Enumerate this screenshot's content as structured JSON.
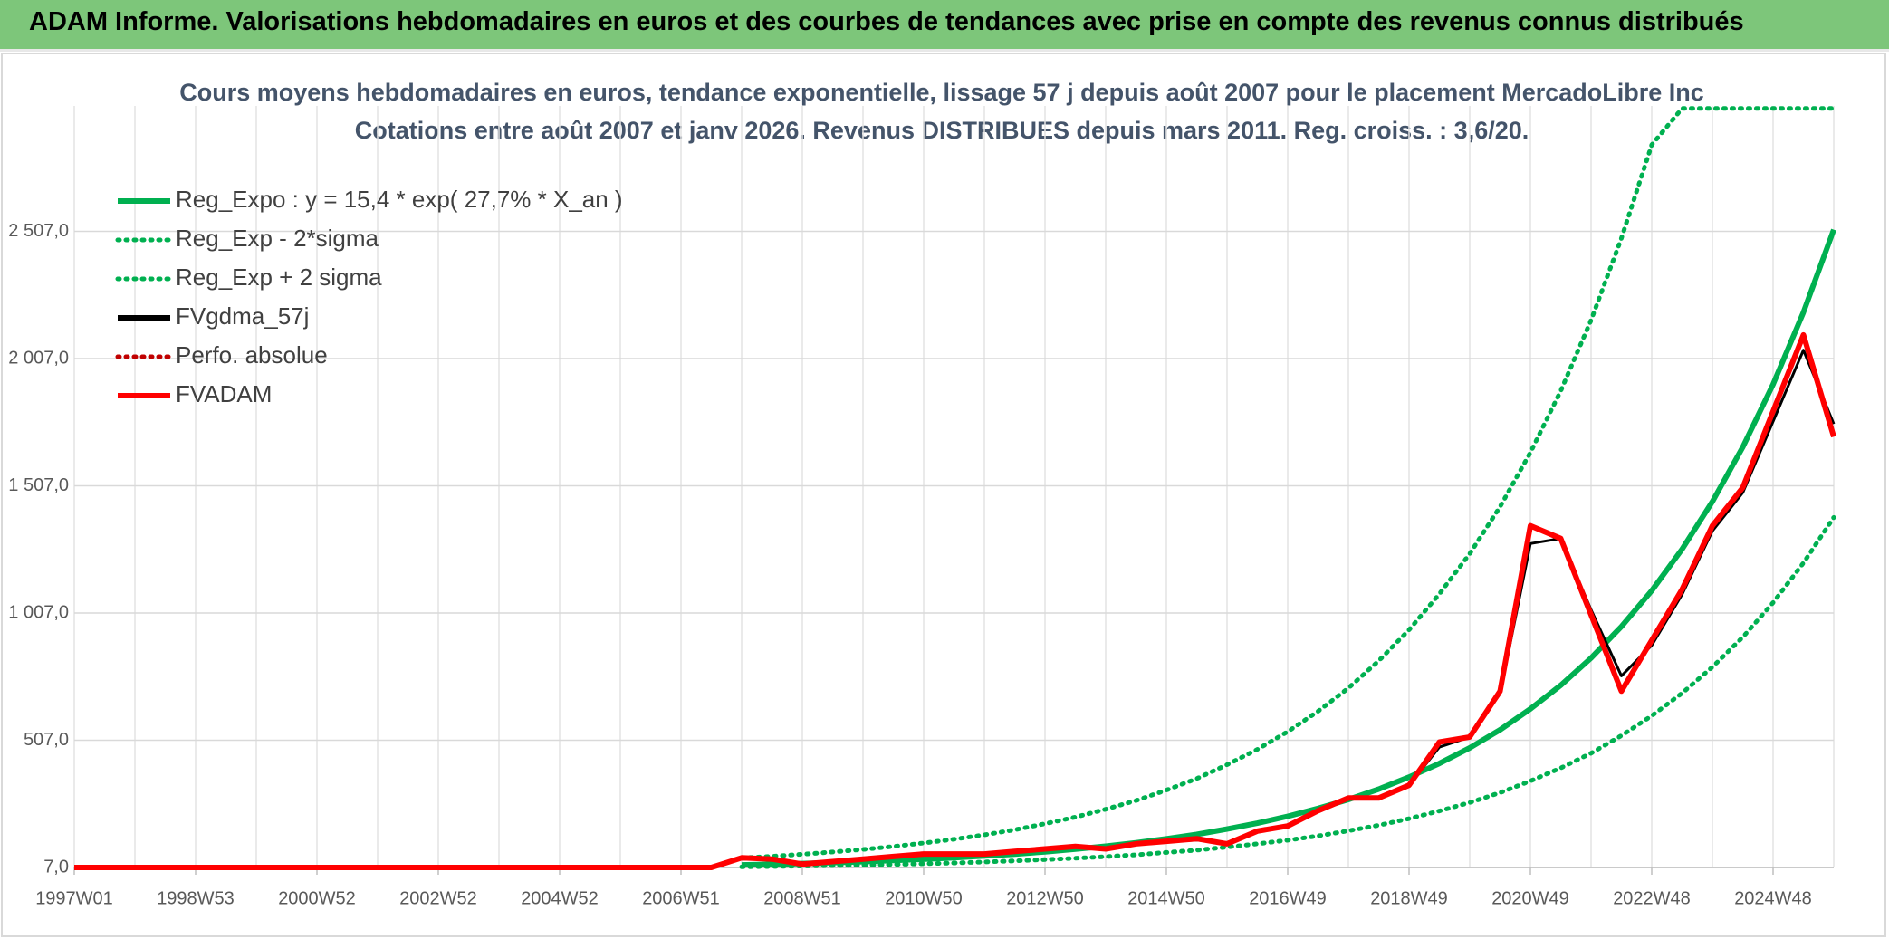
{
  "header": {
    "title": "ADAM Informe. Valorisations hebdomadaires en euros et des courbes de tendances avec prise en compte des revenus connus distribués"
  },
  "chart_data": {
    "type": "line",
    "title": "Cours moyens hebdomadaires en euros, tendance exponentielle, lissage 57 j depuis août 2007 pour le placement MercadoLibre Inc",
    "subtitle": "Cotations entre août 2007 et janv 2026. Revenus DISTRIBUES depuis mars 2011. Reg. croiss. : 3,6/20.",
    "categories": [
      "1997W01",
      null,
      null,
      null,
      "1998W53",
      null,
      null,
      null,
      "2000W52",
      null,
      null,
      null,
      "2002W52",
      null,
      null,
      null,
      "2004W52",
      null,
      null,
      null,
      "2006W51",
      null,
      null,
      null,
      "2008W51",
      null,
      null,
      null,
      "2010W50",
      null,
      null,
      null,
      "2012W50",
      null,
      null,
      null,
      "2014W50",
      null,
      null,
      null,
      "2016W49",
      null,
      null,
      null,
      "2018W49",
      null,
      null,
      null,
      "2020W49",
      null,
      null,
      null,
      "2022W48",
      null,
      null,
      null,
      "2024W48",
      null,
      null
    ],
    "ylim": [
      7,
      3000
    ],
    "yticks": [
      {
        "value": 7,
        "label": "7,0"
      },
      {
        "value": 507,
        "label": "507,0"
      },
      {
        "value": 1007,
        "label": "1 007,0"
      },
      {
        "value": 1507,
        "label": "1 507,0"
      },
      {
        "value": 2007,
        "label": "2 007,0"
      },
      {
        "value": 2507,
        "label": "2 507,0"
      }
    ],
    "grid": true,
    "legend": "top-left",
    "series": [
      {
        "name": "Reg_Expo : y = 15,4 * exp( 27,7% *  X_an )",
        "color": "#00b050",
        "style": "solid",
        "values": [
          null,
          null,
          null,
          null,
          null,
          null,
          null,
          null,
          null,
          null,
          null,
          null,
          null,
          null,
          null,
          null,
          null,
          null,
          null,
          null,
          null,
          null,
          17.2,
          19.7,
          22.7,
          26.1,
          29.9,
          34.4,
          39.5,
          45.3,
          52.1,
          59.8,
          68.7,
          78.9,
          90.6,
          104,
          119.5,
          137,
          158,
          181,
          208,
          239,
          274,
          315,
          362,
          416,
          477,
          548,
          630,
          723,
          830,
          954,
          1095,
          1258,
          1445,
          1659,
          1906,
          2189,
          2514
        ]
      },
      {
        "name": "Reg_Exp - 2*sigma",
        "color": "#00b050",
        "style": "dotted",
        "values": [
          null,
          null,
          null,
          null,
          null,
          null,
          null,
          null,
          null,
          null,
          null,
          null,
          null,
          null,
          null,
          null,
          null,
          null,
          null,
          null,
          null,
          null,
          9.5,
          10.8,
          12.5,
          14.4,
          16.4,
          18.9,
          21.7,
          24.9,
          28.7,
          32.9,
          37.8,
          43.4,
          49.8,
          57,
          66,
          75,
          87,
          100,
          114,
          131,
          151,
          173,
          199,
          229,
          262,
          301,
          347,
          398,
          456,
          525,
          603,
          692,
          795,
          912,
          1048,
          1204,
          1383
        ]
      },
      {
        "name": "Reg_Exp + 2 sigma",
        "color": "#00b050",
        "style": "dotted",
        "values": [
          null,
          null,
          null,
          null,
          null,
          null,
          null,
          null,
          null,
          null,
          null,
          null,
          null,
          null,
          null,
          null,
          null,
          null,
          null,
          null,
          null,
          null,
          44.7,
          51.2,
          59,
          67.9,
          77.7,
          89.4,
          103,
          118,
          135,
          155,
          179,
          205,
          236,
          270,
          311,
          356,
          411,
          471,
          541,
          621,
          712,
          819,
          941,
          1082,
          1240,
          1425,
          1638,
          1880,
          2158,
          2480,
          2847,
          2990,
          2990,
          2990,
          2990,
          2990,
          2990
        ]
      },
      {
        "name": "FVgdma_57j",
        "color": "#000000",
        "style": "solid",
        "values": [
          null,
          null,
          null,
          null,
          null,
          null,
          null,
          null,
          null,
          null,
          null,
          null,
          null,
          null,
          null,
          null,
          null,
          null,
          null,
          null,
          null,
          null,
          40,
          38,
          25,
          30,
          40,
          50,
          58,
          60,
          62,
          70,
          78,
          88,
          85,
          98,
          108,
          115,
          105,
          145,
          170,
          225,
          275,
          285,
          330,
          480,
          520,
          690,
          1280,
          1300,
          1020,
          760,
          880,
          1080,
          1330,
          1480,
          1760,
          2040,
          1750
        ]
      },
      {
        "name": "Perfo. absolue",
        "color": "#c00000",
        "style": "dotted",
        "values": [
          null,
          null,
          null,
          null,
          null,
          null,
          null,
          null,
          null,
          null,
          null,
          null,
          null,
          null,
          null,
          null,
          null,
          null,
          null,
          null,
          null,
          null,
          null,
          null,
          null,
          null,
          null,
          null,
          null,
          null,
          null,
          null,
          null,
          null,
          null,
          null,
          null,
          null,
          null,
          null,
          null,
          null,
          null,
          null,
          null,
          null,
          null,
          null,
          null,
          null,
          null,
          null,
          null,
          null,
          null,
          null,
          null,
          null,
          null
        ]
      },
      {
        "name": "FVADAM",
        "color": "#ff0000",
        "style": "solid",
        "values": [
          7,
          7,
          7,
          7,
          7,
          7,
          7,
          7,
          7,
          7,
          7,
          7,
          7,
          7,
          7,
          7,
          7,
          7,
          7,
          7,
          7,
          7,
          45,
          40,
          20,
          30,
          40,
          50,
          60,
          60,
          60,
          70,
          80,
          90,
          80,
          100,
          110,
          120,
          100,
          150,
          170,
          230,
          280,
          280,
          330,
          500,
          520,
          700,
          1350,
          1300,
          1000,
          700,
          900,
          1100,
          1350,
          1500,
          1800,
          2100,
          1700
        ]
      }
    ]
  }
}
